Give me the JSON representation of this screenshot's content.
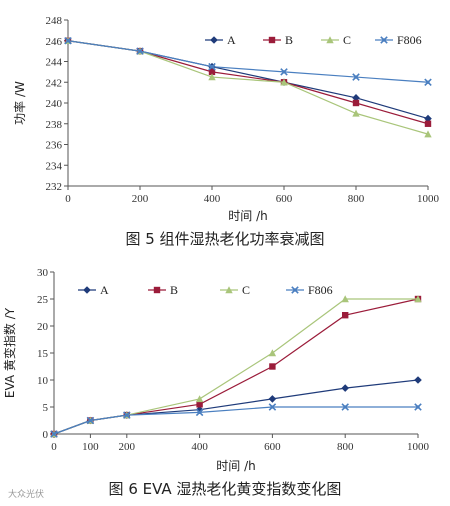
{
  "watermark": "大众光伏",
  "chart_data": [
    {
      "type": "line",
      "x": [
        0,
        200,
        400,
        600,
        800,
        1000
      ],
      "xlim": [
        0,
        1000
      ],
      "ylim": [
        232,
        248
      ],
      "xticks": [
        "0",
        "200",
        "400",
        "600",
        "800",
        "1000"
      ],
      "yticks": [
        "232",
        "234",
        "236",
        "238",
        "240",
        "242",
        "244",
        "246",
        "248"
      ],
      "xlabel": "时间 /h",
      "ylabel": "功率 /W",
      "caption": "图 5  组件湿热老化功率衰减图",
      "legend_position": "top-right",
      "grid": false,
      "series": [
        {
          "name": "A",
          "color": "#1f3b7a",
          "marker": "diamond",
          "values": [
            246,
            245,
            243.5,
            242,
            240.5,
            238.5
          ]
        },
        {
          "name": "B",
          "color": "#9b1c3a",
          "marker": "square",
          "values": [
            246,
            245,
            243,
            242,
            240,
            238
          ]
        },
        {
          "name": "C",
          "color": "#a9c57a",
          "marker": "triangle",
          "values": [
            246,
            245,
            242.5,
            242,
            239,
            237
          ]
        },
        {
          "name": "F806",
          "color": "#4a7fc0",
          "marker": "x",
          "values": [
            246,
            245,
            243.5,
            243,
            242.5,
            242
          ]
        }
      ]
    },
    {
      "type": "line",
      "x": [
        0,
        100,
        200,
        400,
        600,
        800,
        1000
      ],
      "xlim": [
        0,
        1000
      ],
      "ylim": [
        0,
        30
      ],
      "xticks": [
        "0",
        "100",
        "200",
        "400",
        "600",
        "800",
        "1000"
      ],
      "yticks": [
        "0",
        "5",
        "10",
        "15",
        "20",
        "25",
        "30"
      ],
      "xlabel": "时间 /h",
      "ylabel": "EVA 黄变指数 /Y",
      "caption": "图 6  EVA 湿热老化黄变指数变化图",
      "legend_position": "top-left",
      "grid": false,
      "series": [
        {
          "name": "A",
          "color": "#1f3b7a",
          "marker": "diamond",
          "values": [
            0,
            2.5,
            3.5,
            4.5,
            6.5,
            8.5,
            10
          ]
        },
        {
          "name": "B",
          "color": "#9b1c3a",
          "marker": "square",
          "values": [
            0,
            2.5,
            3.5,
            5.5,
            12.5,
            22,
            25
          ]
        },
        {
          "name": "C",
          "color": "#a9c57a",
          "marker": "triangle",
          "values": [
            0,
            2.5,
            3.5,
            6.5,
            15,
            25,
            25
          ]
        },
        {
          "name": "F806",
          "color": "#4a7fc0",
          "marker": "x",
          "values": [
            0,
            2.5,
            3.5,
            4,
            5,
            5,
            5
          ]
        }
      ]
    }
  ]
}
